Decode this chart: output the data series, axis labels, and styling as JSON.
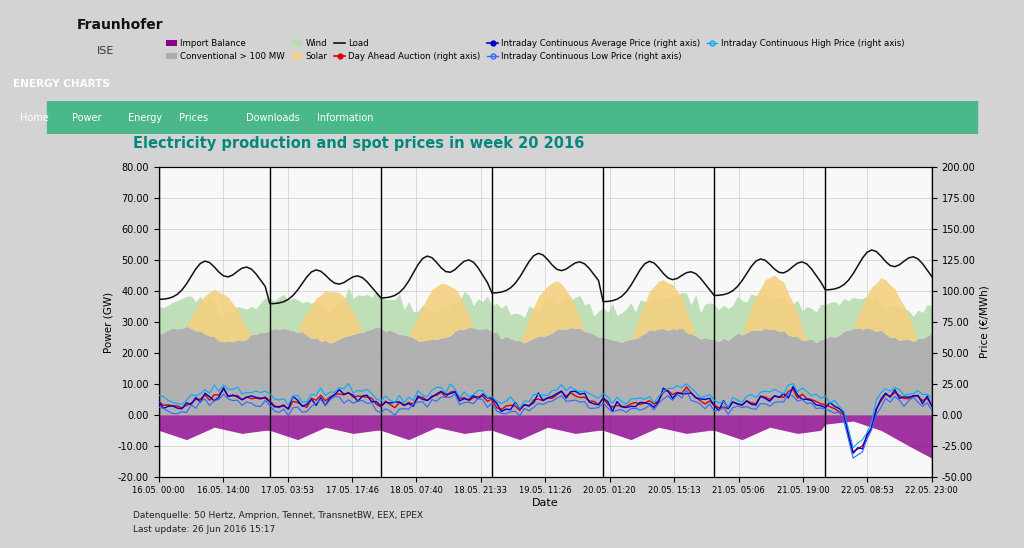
{
  "title": "Electricity production and spot prices in week 20 2016",
  "title_color": "#00897B",
  "xlabel": "Date",
  "ylabel_left": "Power (GW)",
  "ylabel_right": "Price (€/MWh)",
  "ylim_left": [
    -20,
    80
  ],
  "ylim_right": [
    -50,
    200
  ],
  "xtick_labels": [
    "16.05. 00:00",
    "16.05. 14:00",
    "17.05. 03:53",
    "17.05. 17:46",
    "18.05. 07:40",
    "18.05. 21:33",
    "19.05. 11:26",
    "20.05. 01:20",
    "20.05. 15:13",
    "21.05. 05:06",
    "21.05. 19:00",
    "22.05. 08:53",
    "22.05. 23:00"
  ],
  "yticks_left": [
    -20,
    -10,
    0,
    10,
    20,
    30,
    40,
    50,
    60,
    70,
    80
  ],
  "yticks_right": [
    -50,
    -25,
    0,
    25,
    50,
    75,
    100,
    125,
    150,
    175,
    200
  ],
  "header_bg": "#c0c0c0",
  "nav_bg": "#006994",
  "nav_active": "#2e9e6e",
  "bg_color": "#ffffff",
  "chart_bg": "#f8f8f8",
  "grid_color": "#cccccc",
  "source_text": "Datenquelle: 50 Hertz, Amprion, Tennet, TransnetBW, EEX, EPEX\nLast update: 26 Jun 2016 15:17",
  "n_points": 168,
  "vline_days": [
    0,
    24,
    48,
    72,
    96,
    120,
    144,
    167
  ]
}
